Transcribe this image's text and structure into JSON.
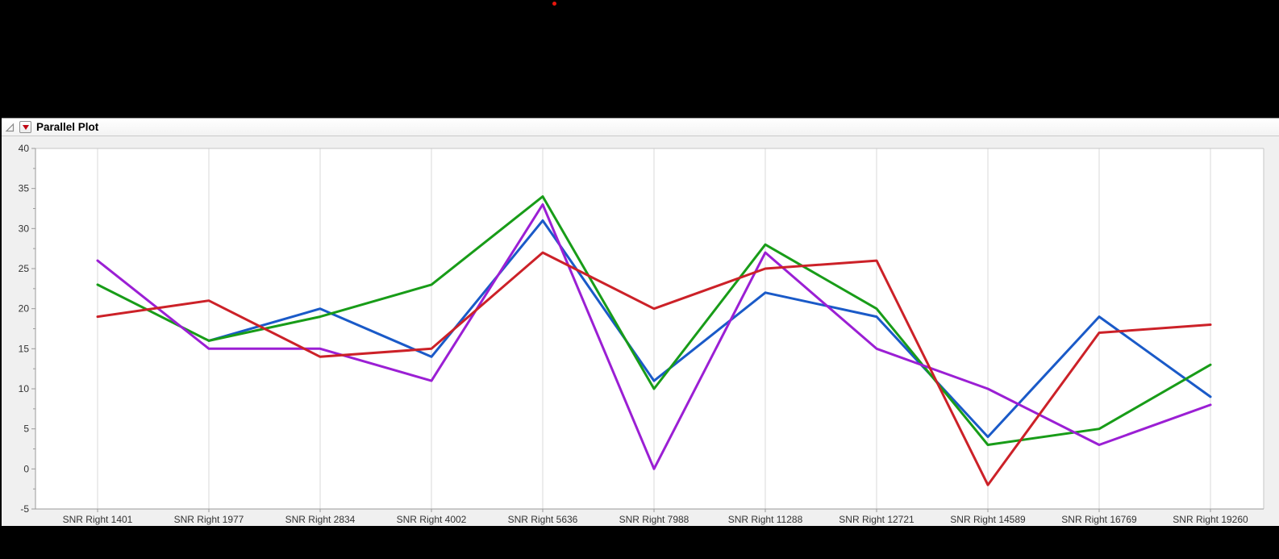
{
  "panel": {
    "title": "Parallel Plot"
  },
  "ui_colors": {
    "recording_dot": "#e8150d",
    "panel_background": "#f0f0f0",
    "menu_triangle": "#c00511"
  },
  "chart_data": {
    "type": "line",
    "subtype": "parallel-coordinates",
    "title": "Parallel Plot",
    "categories": [
      "SNR Right 1401",
      "SNR Right 1977",
      "SNR Right 2834",
      "SNR Right 4002",
      "SNR Right 5636",
      "SNR Right 7988",
      "SNR Right 11288",
      "SNR Right 12721",
      "SNR Right 14589",
      "SNR Right 16769",
      "SNR Right 19260"
    ],
    "series": [
      {
        "name": "blue",
        "color": "#1a5ac8",
        "values": [
          null,
          16,
          20,
          14,
          31,
          11,
          22,
          19,
          4,
          19,
          9
        ]
      },
      {
        "name": "green",
        "color": "#189c18",
        "values": [
          23,
          16,
          19,
          23,
          34,
          10,
          28,
          20,
          3,
          5,
          13
        ]
      },
      {
        "name": "purple",
        "color": "#9b1fd4",
        "values": [
          26,
          15,
          15,
          11,
          33,
          0,
          27,
          15,
          10,
          3,
          8
        ]
      },
      {
        "name": "red",
        "color": "#cc2128",
        "values": [
          19,
          21,
          14,
          15,
          27,
          20,
          25,
          26,
          -2,
          17,
          18
        ]
      }
    ],
    "ylim": [
      -5,
      40
    ],
    "yticks": [
      40,
      35,
      30,
      25,
      20,
      15,
      10,
      5,
      0,
      -5
    ],
    "ytick_minor_step": 2.5,
    "xlabel": "",
    "ylabel": "",
    "legend": "none",
    "grid": "vertical-category-lines",
    "colors": {
      "grid": "#d8d8d8",
      "axis": "#9a9a9a",
      "label": "#333333",
      "plot_background": "#ffffff",
      "outer_border": "#c6c6c6"
    }
  }
}
